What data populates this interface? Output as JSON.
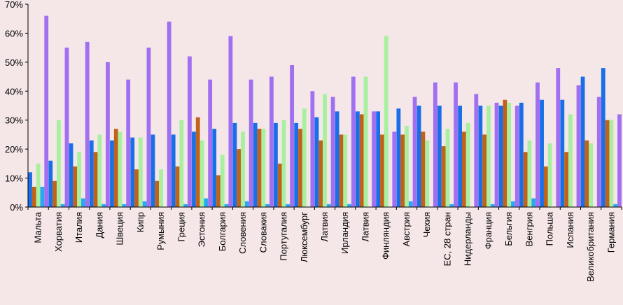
{
  "chart_data": {
    "type": "bar",
    "title": "",
    "xlabel": "",
    "ylabel": "",
    "ylim": [
      0,
      70
    ],
    "yticks": [
      "0%",
      "10%",
      "20%",
      "30%",
      "40%",
      "50%",
      "60%",
      "70%"
    ],
    "grid": false,
    "legend": "none",
    "categories": [
      "Мальта",
      "Хорватия",
      "Италия",
      "Дания",
      "Швеция",
      "Кипр",
      "Румыния",
      "Греция",
      "Эстония",
      "Болгария",
      "Словения",
      "Словакия",
      "Португалия",
      "Люксембург",
      "Латвия",
      "Ирландия",
      "Латвия",
      "Финляндия",
      "Австрия",
      "Чехия",
      "ЕС, 28 стран",
      "Нидерланды",
      "Франция",
      "Бельгия",
      "Венгрия",
      "Польша",
      "Испания",
      "Великобритания",
      "Германия"
    ],
    "series": [
      {
        "color": "#1a6fe8",
        "values": [
          12,
          16,
          22,
          23,
          23,
          24,
          25,
          25,
          26,
          27,
          29,
          29,
          29,
          29,
          31,
          33,
          33,
          33,
          34,
          35,
          35,
          35,
          35,
          35,
          36,
          37,
          37,
          45,
          48
        ]
      },
      {
        "color": "#c0621a",
        "values": [
          7,
          9,
          14,
          19,
          27,
          13,
          9,
          14,
          31,
          11,
          20,
          27,
          15,
          27,
          23,
          25,
          32,
          25,
          25,
          26,
          21,
          26,
          25,
          37,
          19,
          14,
          19,
          23,
          30
        ]
      },
      {
        "color": "#a8f0a0",
        "values": [
          15,
          30,
          19,
          25,
          26,
          24,
          13,
          30,
          23,
          18,
          26,
          27,
          30,
          34,
          39,
          25,
          45,
          59,
          28,
          23,
          27,
          29,
          35,
          36,
          23,
          22,
          32,
          22,
          30
        ]
      },
      {
        "color": "#2aa8f0",
        "values": [
          7,
          1,
          3,
          1,
          1,
          2,
          0,
          1,
          3,
          1,
          2,
          1,
          1,
          0,
          1,
          1,
          0,
          0,
          2,
          0,
          1,
          0,
          1,
          2,
          3,
          0,
          0,
          0,
          1
        ]
      },
      {
        "color": "#a070f0",
        "values": [
          66,
          55,
          57,
          50,
          44,
          55,
          64,
          52,
          44,
          59,
          44,
          45,
          49,
          40,
          38,
          45,
          33,
          26,
          38,
          43,
          43,
          39,
          36,
          35,
          43,
          48,
          42,
          38,
          32
        ]
      }
    ]
  }
}
